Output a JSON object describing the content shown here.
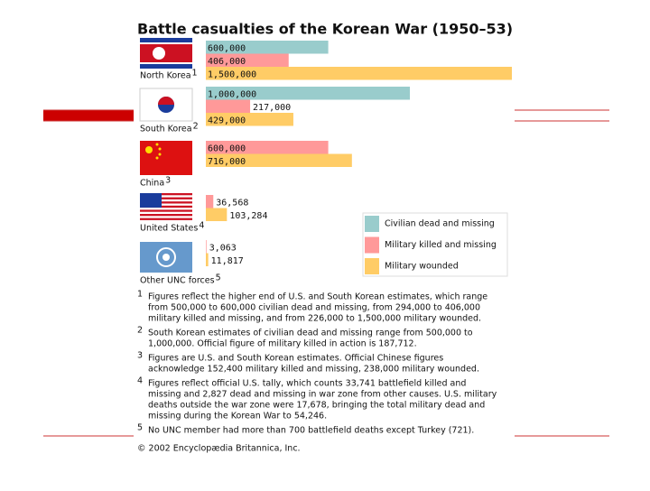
{
  "chart_data": {
    "type": "hbar",
    "title": "Battle casualties of the Korean War (1950–53)",
    "categories": [
      "North Korea",
      "South Korea",
      "China",
      "United States",
      "Other UNC forces"
    ],
    "category_notes": [
      "1",
      "2",
      "3",
      "4",
      "5"
    ],
    "series": [
      {
        "name": "Civilian dead and missing",
        "color": "#99cccc",
        "values": [
          600000,
          1000000,
          null,
          null,
          null
        ],
        "value_labels": [
          "600,000",
          "1,000,000",
          null,
          null,
          null
        ]
      },
      {
        "name": "Military killed and missing",
        "color": "#ff9999",
        "values": [
          406000,
          217000,
          600000,
          36568,
          3063
        ],
        "value_labels": [
          "406,000",
          "217,000",
          "600,000",
          "36,568",
          "3,063"
        ]
      },
      {
        "name": "Military wounded",
        "color": "#ffcc66",
        "values": [
          1500000,
          429000,
          716000,
          103284,
          11817
        ],
        "value_labels": [
          "1,500,000",
          "429,000",
          "716,000",
          "103,284",
          "11,817"
        ]
      }
    ],
    "footnotes": [
      {
        "marker": "1",
        "lines": [
          "Figures reflect the higher end of U.S. and South Korean estimates, which range",
          "from 500,000 to 600,000 civilian dead and missing, from 294,000 to 406,000",
          "military killed and missing, and from 226,000 to 1,500,000 military wounded."
        ]
      },
      {
        "marker": "2",
        "lines": [
          "South Korean estimates of civilian dead and missing range from 500,000 to",
          "1,000,000.  Official figure of military killed in action is 187,712."
        ]
      },
      {
        "marker": "3",
        "lines": [
          "Figures are U.S. and South Korean estimates. Official Chinese figures",
          "acknowledge 152,400 military killed and missing, 238,000 military wounded."
        ]
      },
      {
        "marker": "4",
        "lines": [
          "Figures reflect official U.S. tally, which counts 33,741 battlefield killed and",
          "missing and 2,827 dead and missing in war zone from other causes. U.S. military",
          "deaths outside the war zone were 17,678, bringing the total military dead and",
          "missing during the Korean War to 54,246."
        ]
      },
      {
        "marker": "5",
        "lines": [
          "No UNC member had more than 700 battlefield deaths except Turkey (721)."
        ]
      }
    ],
    "copyright": "© 2002 Encyclopædia Britannica, Inc."
  }
}
